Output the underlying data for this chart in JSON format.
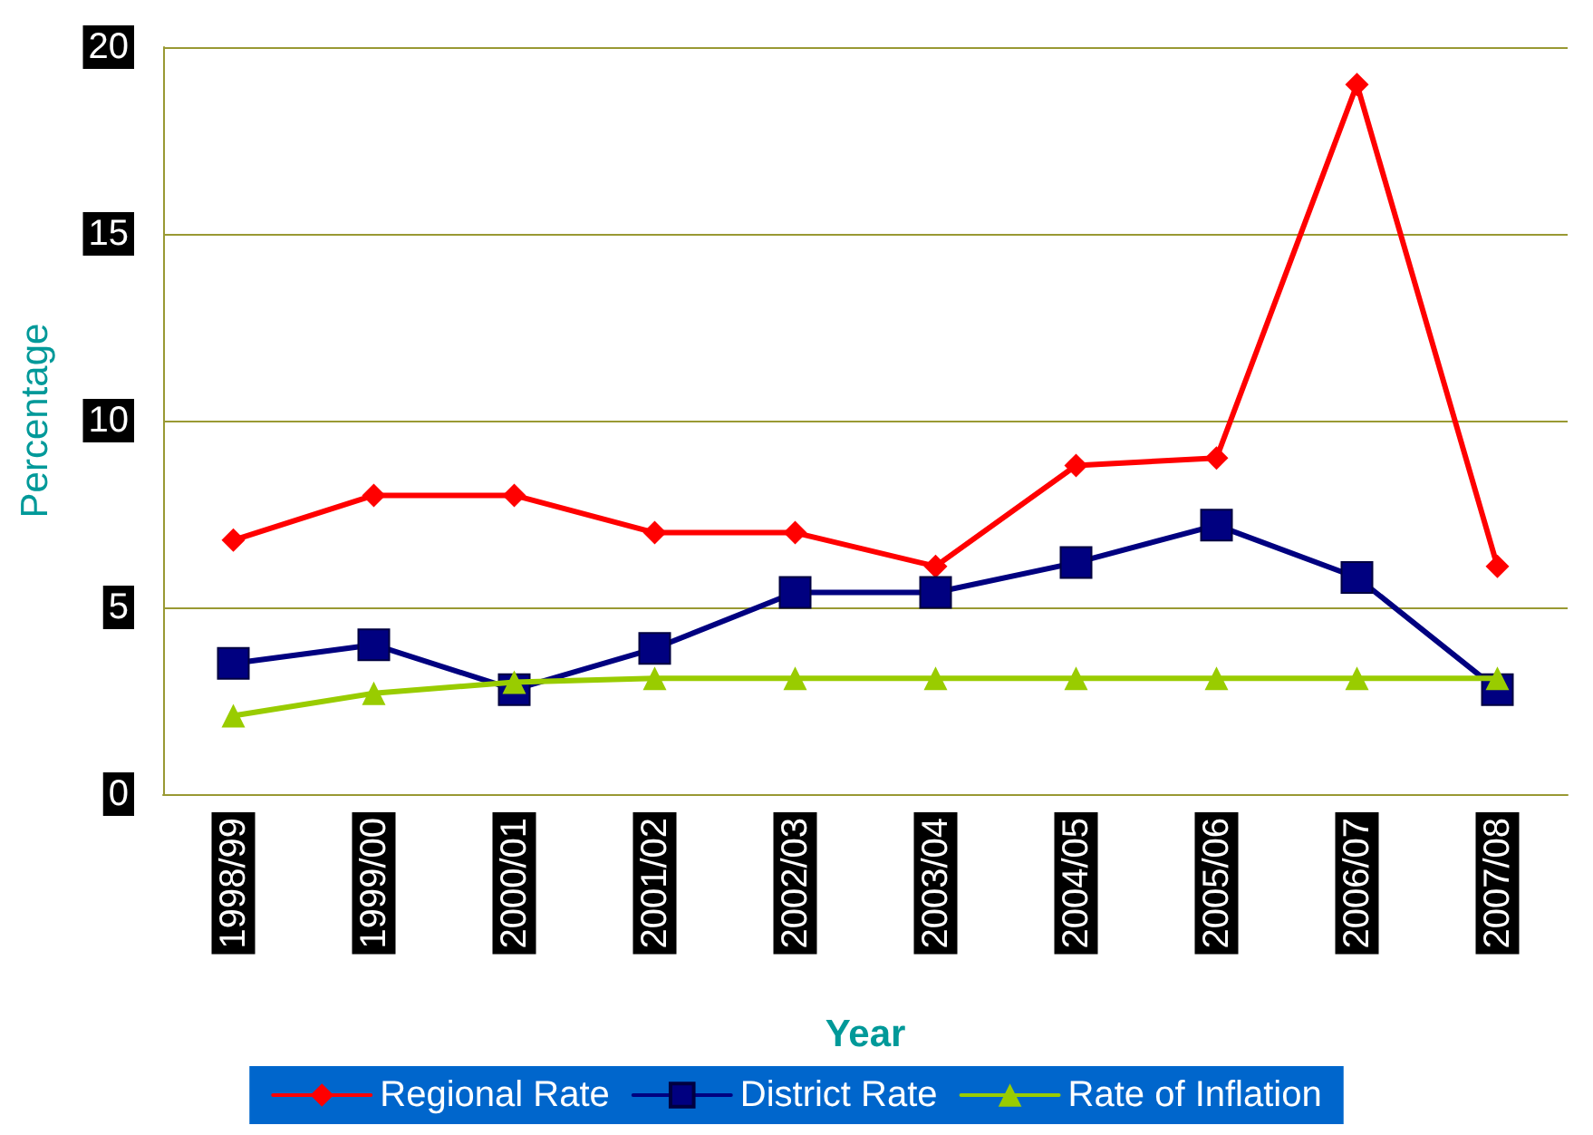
{
  "chart_data": {
    "type": "line",
    "xlabel": "Year",
    "ylabel": "Percentage",
    "categories": [
      "1998/99",
      "1999/00",
      "2000/01",
      "2001/02",
      "2002/03",
      "2003/04",
      "2004/05",
      "2005/06",
      "2006/07",
      "2007/08"
    ],
    "series": [
      {
        "name": "Regional Rate",
        "color": "#ff0000",
        "marker": "diamond",
        "values": [
          6.8,
          8.0,
          8.0,
          7.0,
          7.0,
          6.1,
          8.8,
          9.0,
          19.0,
          6.1
        ]
      },
      {
        "name": "District Rate",
        "color": "#000080",
        "marker": "square",
        "values": [
          3.5,
          4.0,
          2.8,
          3.9,
          5.4,
          5.4,
          6.2,
          7.2,
          5.8,
          2.8
        ]
      },
      {
        "name": "Rate of Inflation",
        "color": "#99cc00",
        "marker": "triangle",
        "values": [
          2.1,
          2.7,
          3.0,
          3.1,
          3.1,
          3.1,
          3.1,
          3.1,
          3.1,
          3.1
        ]
      }
    ],
    "ylim": [
      0,
      20
    ],
    "yticks": [
      0,
      5,
      10,
      15,
      20
    ],
    "grid": "y",
    "legend": "bottom"
  }
}
